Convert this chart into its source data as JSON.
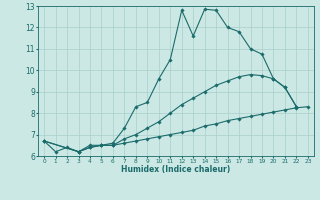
{
  "title": "",
  "xlabel": "Humidex (Indice chaleur)",
  "xlim": [
    -0.5,
    23.5
  ],
  "ylim": [
    6,
    13
  ],
  "yticks": [
    6,
    7,
    8,
    9,
    10,
    11,
    12,
    13
  ],
  "xticks": [
    0,
    1,
    2,
    3,
    4,
    5,
    6,
    7,
    8,
    9,
    10,
    11,
    12,
    13,
    14,
    15,
    16,
    17,
    18,
    19,
    20,
    21,
    22,
    23
  ],
  "background_color": "#cce8e4",
  "grid_color": "#aacfcb",
  "line_color": "#1a6b6b",
  "series": [
    [
      6.7,
      6.2,
      6.4,
      6.2,
      6.5,
      6.5,
      6.6,
      7.3,
      8.3,
      8.5,
      9.6,
      10.5,
      12.8,
      11.6,
      12.85,
      12.8,
      12.0,
      11.8,
      11.0,
      10.75,
      9.6,
      9.2,
      8.3,
      null
    ],
    [
      6.7,
      null,
      null,
      6.2,
      6.4,
      6.5,
      6.5,
      6.6,
      6.7,
      6.8,
      6.9,
      7.0,
      7.1,
      7.2,
      7.4,
      7.5,
      7.65,
      7.75,
      7.85,
      7.95,
      8.05,
      8.15,
      8.25,
      8.3
    ],
    [
      6.7,
      null,
      null,
      6.2,
      6.4,
      6.5,
      6.5,
      6.8,
      7.0,
      7.3,
      7.6,
      8.0,
      8.4,
      8.7,
      9.0,
      9.3,
      9.5,
      9.7,
      9.8,
      9.75,
      9.6,
      9.2,
      8.3,
      null
    ]
  ]
}
